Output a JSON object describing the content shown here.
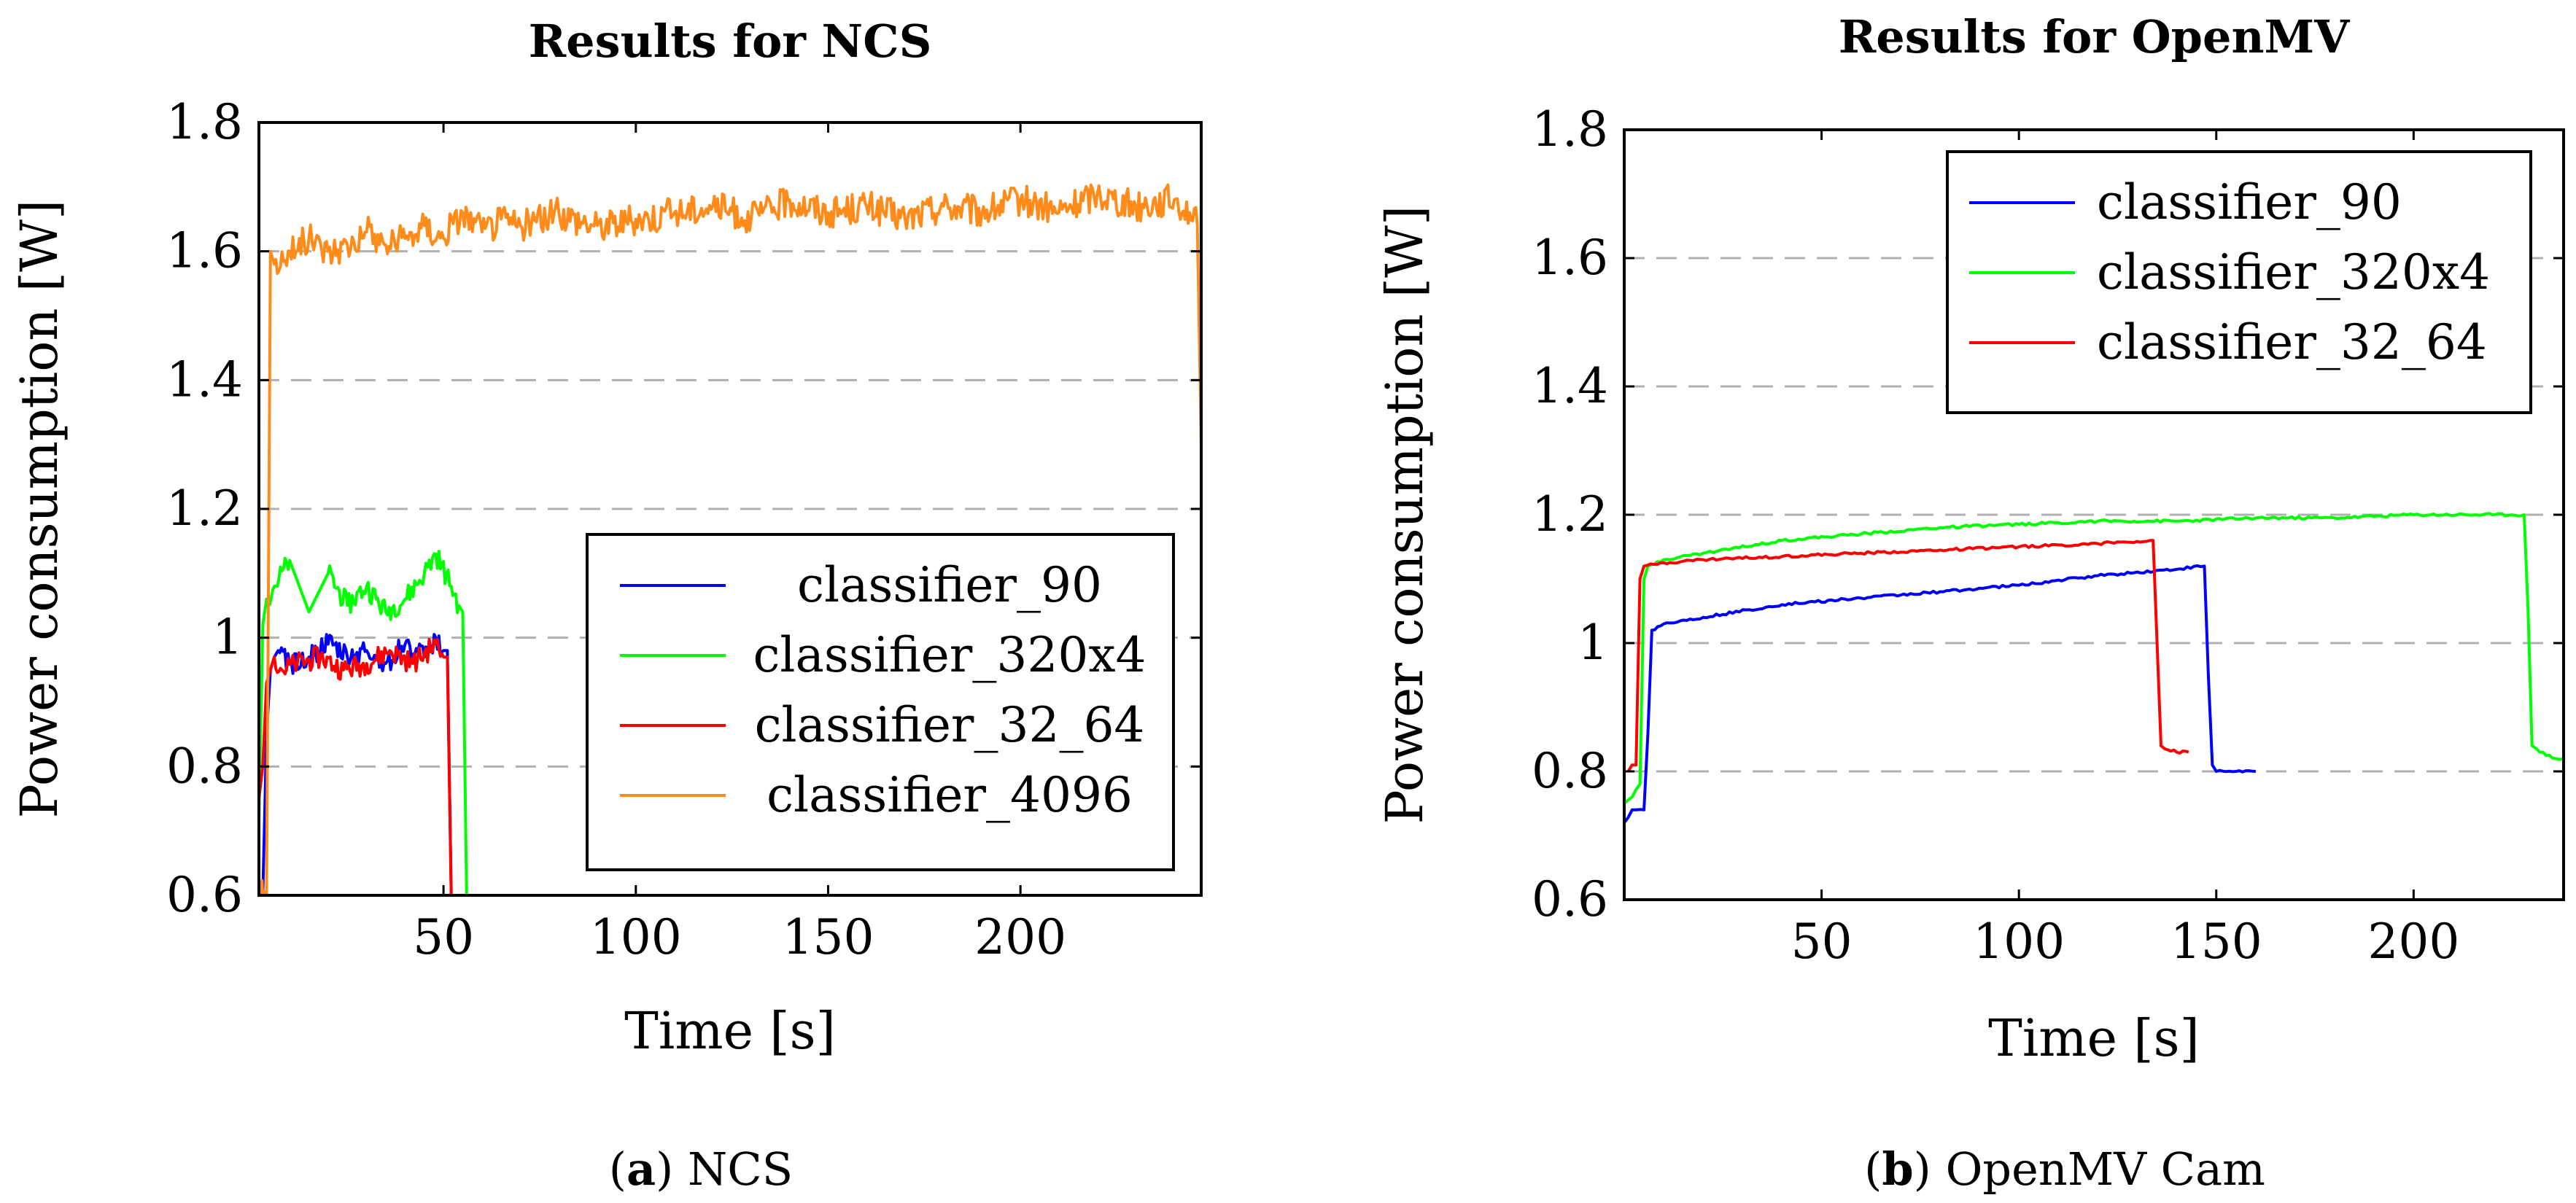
{
  "chart_data": [
    {
      "type": "line",
      "title": "Results for NCS",
      "caption_letter": "a",
      "caption_text": "NCS",
      "xlabel": "Time [s]",
      "ylabel": "Power consumption [W]",
      "xlim": [
        2,
        247
      ],
      "ylim": [
        0.6,
        1.8
      ],
      "xticks": [
        50,
        100,
        150,
        200
      ],
      "yticks": [
        0.6,
        0.8,
        1.0,
        1.2,
        1.4,
        1.6,
        1.8
      ],
      "ytick_labels": [
        "0.6",
        "0.8",
        "1",
        "1.2",
        "1.4",
        "1.6",
        "1.8"
      ],
      "legend_position": "center-right",
      "grid": "horizontal-dashed",
      "series": [
        {
          "name": "classifier_90",
          "color": "#0000ff",
          "x": [
            3,
            4,
            5,
            6,
            7,
            10,
            15,
            20,
            25,
            30,
            35,
            40,
            45,
            48,
            50,
            51,
            52
          ],
          "y": [
            0.6,
            0.85,
            0.95,
            0.97,
            0.98,
            0.96,
            0.97,
            0.99,
            0.97,
            0.98,
            0.96,
            0.99,
            0.97,
            1.0,
            0.98,
            0.98,
            0.6
          ]
        },
        {
          "name": "classifier_320x4",
          "color": "#00ff00",
          "x": [
            2,
            3,
            4,
            6,
            10,
            15,
            20,
            25,
            30,
            35,
            40,
            45,
            48,
            52,
            54,
            55,
            56
          ],
          "y": [
            0.72,
            1.02,
            1.06,
            1.08,
            1.12,
            1.04,
            1.1,
            1.05,
            1.08,
            1.04,
            1.06,
            1.1,
            1.13,
            1.08,
            1.05,
            1.04,
            0.6
          ]
        },
        {
          "name": "classifier_32_64",
          "color": "#ff0000",
          "x": [
            2,
            3,
            4,
            5,
            6,
            8,
            12,
            18,
            24,
            30,
            36,
            42,
            48,
            50,
            51,
            52
          ],
          "y": [
            0.75,
            0.8,
            0.93,
            0.95,
            0.97,
            0.95,
            0.96,
            0.97,
            0.95,
            0.96,
            0.98,
            0.96,
            0.99,
            0.97,
            0.97,
            0.6
          ]
        },
        {
          "name": "classifier_4096",
          "color": "#ff8c1a",
          "x": [
            2,
            4,
            5,
            6,
            10,
            15,
            20,
            25,
            30,
            35,
            40,
            45,
            50,
            55,
            60,
            65,
            70,
            80,
            90,
            100,
            110,
            120,
            130,
            140,
            150,
            160,
            170,
            180,
            190,
            200,
            210,
            220,
            230,
            240,
            244,
            246,
            247
          ],
          "y": [
            0.6,
            0.6,
            1.6,
            1.58,
            1.6,
            1.62,
            1.6,
            1.61,
            1.63,
            1.61,
            1.62,
            1.64,
            1.62,
            1.66,
            1.63,
            1.65,
            1.64,
            1.66,
            1.64,
            1.65,
            1.66,
            1.67,
            1.65,
            1.68,
            1.66,
            1.67,
            1.65,
            1.67,
            1.66,
            1.68,
            1.66,
            1.69,
            1.67,
            1.68,
            1.66,
            1.64,
            1.3
          ]
        }
      ]
    },
    {
      "type": "line",
      "title": "Results for OpenMV",
      "caption_letter": "b",
      "caption_text": "OpenMV Cam",
      "xlabel": "Time [s]",
      "ylabel": "Power consumption [W]",
      "xlim": [
        0,
        238
      ],
      "ylim": [
        0.6,
        1.8
      ],
      "xticks": [
        50,
        100,
        150,
        200
      ],
      "yticks": [
        0.6,
        0.8,
        1.0,
        1.2,
        1.4,
        1.6,
        1.8
      ],
      "ytick_labels": [
        "0.6",
        "0.8",
        "1",
        "1.2",
        "1.4",
        "1.6",
        "1.8"
      ],
      "legend_position": "top-right",
      "grid": "horizontal-dashed",
      "series": [
        {
          "name": "classifier_90",
          "color": "#0000ff",
          "x": [
            0,
            2,
            3,
            5,
            6,
            7,
            10,
            20,
            40,
            60,
            80,
            100,
            120,
            140,
            147,
            148,
            149,
            150,
            155,
            160
          ],
          "y": [
            0.72,
            0.74,
            0.74,
            0.74,
            0.86,
            1.02,
            1.03,
            1.04,
            1.06,
            1.07,
            1.08,
            1.09,
            1.105,
            1.115,
            1.12,
            0.95,
            0.81,
            0.8,
            0.8,
            0.8
          ]
        },
        {
          "name": "classifier_320x4",
          "color": "#00ff00",
          "x": [
            0,
            2,
            4,
            5,
            6,
            10,
            20,
            40,
            60,
            80,
            100,
            120,
            140,
            160,
            180,
            200,
            220,
            228,
            229,
            230,
            232,
            236,
            238
          ],
          "y": [
            0.75,
            0.76,
            0.78,
            1.1,
            1.12,
            1.13,
            1.14,
            1.16,
            1.17,
            1.18,
            1.185,
            1.19,
            1.19,
            1.195,
            1.195,
            1.2,
            1.2,
            1.2,
            1.05,
            0.84,
            0.83,
            0.82,
            0.82
          ]
        },
        {
          "name": "classifier_32_64",
          "color": "#ff0000",
          "x": [
            1,
            2,
            3,
            4,
            5,
            10,
            20,
            40,
            60,
            80,
            100,
            120,
            134,
            135,
            136,
            137,
            140,
            143
          ],
          "y": [
            0.8,
            0.81,
            0.81,
            1.1,
            1.12,
            1.125,
            1.13,
            1.135,
            1.14,
            1.145,
            1.15,
            1.155,
            1.16,
            1.0,
            0.84,
            0.835,
            0.83,
            0.83
          ]
        }
      ]
    }
  ]
}
